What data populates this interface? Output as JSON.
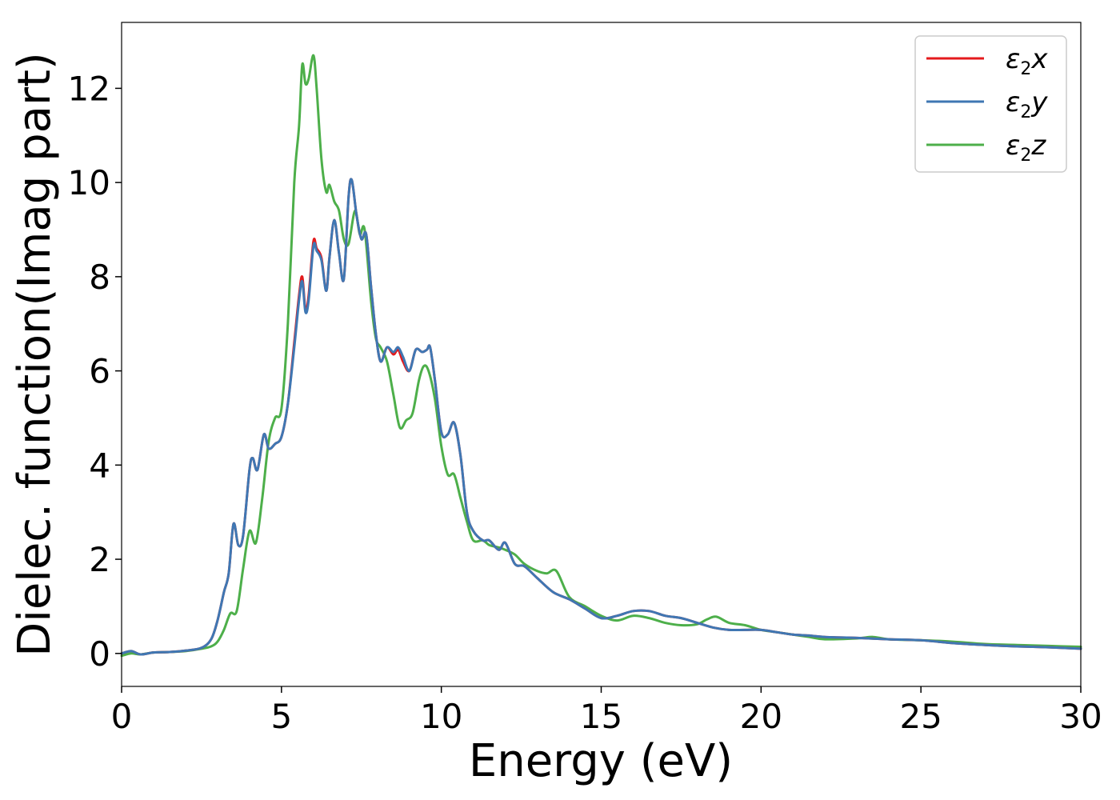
{
  "chart_data": {
    "type": "line",
    "xlabel": "Energy (eV)",
    "ylabel": "Dielec. function(Imag part)",
    "xlim": [
      0,
      30
    ],
    "ylim": [
      -0.7,
      13.4
    ],
    "xticks": [
      0,
      5,
      10,
      15,
      20,
      25,
      30
    ],
    "yticks": [
      0,
      2,
      4,
      6,
      8,
      10,
      12
    ],
    "grid": false,
    "legend_position": "top-right",
    "series": [
      {
        "name": "ε2x",
        "legend_base": "ε",
        "legend_sub": "2",
        "legend_suffix": "x",
        "color": "#e41a1c",
        "x": [
          0,
          0.3,
          0.6,
          1,
          1.5,
          2,
          2.5,
          2.8,
          3.0,
          3.2,
          3.35,
          3.5,
          3.65,
          3.8,
          4.0,
          4.1,
          4.25,
          4.45,
          4.6,
          4.8,
          5.0,
          5.2,
          5.4,
          5.55,
          5.65,
          5.75,
          5.85,
          6.0,
          6.1,
          6.25,
          6.4,
          6.5,
          6.65,
          6.8,
          6.95,
          7.1,
          7.2,
          7.35,
          7.5,
          7.65,
          7.8,
          7.95,
          8.1,
          8.3,
          8.5,
          8.65,
          8.8,
          9.0,
          9.2,
          9.4,
          9.55,
          9.65,
          9.8,
          10.0,
          10.2,
          10.4,
          10.6,
          10.8,
          11.0,
          11.3,
          11.5,
          11.8,
          12.0,
          12.3,
          12.6,
          13.0,
          13.5,
          14.0,
          14.5,
          15.0,
          15.5,
          16.0,
          16.5,
          17.0,
          17.5,
          18.0,
          18.5,
          19.0,
          19.5,
          20.0,
          20.5,
          21.0,
          21.5,
          22.0,
          23.0,
          24.0,
          25.0,
          26.0,
          27.0,
          28.0,
          29.0,
          30.0
        ],
        "y": [
          0.0,
          0.05,
          -0.02,
          0.02,
          0.03,
          0.06,
          0.12,
          0.3,
          0.7,
          1.3,
          1.7,
          2.75,
          2.3,
          2.5,
          3.9,
          4.15,
          3.9,
          4.65,
          4.35,
          4.45,
          4.6,
          5.3,
          6.6,
          7.6,
          8.0,
          7.3,
          7.6,
          8.75,
          8.6,
          8.4,
          7.7,
          8.4,
          9.2,
          8.5,
          7.95,
          9.7,
          10.05,
          9.3,
          8.8,
          8.9,
          7.8,
          6.8,
          6.2,
          6.5,
          6.35,
          6.45,
          6.2,
          6.0,
          6.45,
          6.4,
          6.45,
          6.5,
          5.8,
          4.7,
          4.65,
          4.9,
          4.2,
          3.0,
          2.6,
          2.4,
          2.4,
          2.2,
          2.35,
          1.9,
          1.85,
          1.6,
          1.3,
          1.15,
          0.95,
          0.75,
          0.8,
          0.9,
          0.9,
          0.8,
          0.75,
          0.65,
          0.55,
          0.5,
          0.5,
          0.5,
          0.45,
          0.4,
          0.38,
          0.35,
          0.33,
          0.3,
          0.28,
          0.22,
          0.18,
          0.15,
          0.13,
          0.1
        ]
      },
      {
        "name": "ε2y",
        "legend_base": "ε",
        "legend_sub": "2",
        "legend_suffix": "y",
        "color": "#3f77b3",
        "x": [
          0,
          0.3,
          0.6,
          1,
          1.5,
          2,
          2.5,
          2.8,
          3.0,
          3.2,
          3.35,
          3.5,
          3.65,
          3.8,
          4.0,
          4.1,
          4.25,
          4.45,
          4.6,
          4.8,
          5.0,
          5.2,
          5.4,
          5.55,
          5.65,
          5.75,
          5.85,
          6.0,
          6.1,
          6.25,
          6.4,
          6.5,
          6.65,
          6.8,
          6.95,
          7.1,
          7.2,
          7.35,
          7.5,
          7.65,
          7.8,
          7.95,
          8.1,
          8.3,
          8.5,
          8.65,
          8.8,
          9.0,
          9.2,
          9.4,
          9.55,
          9.65,
          9.8,
          10.0,
          10.2,
          10.4,
          10.6,
          10.8,
          11.0,
          11.3,
          11.5,
          11.8,
          12.0,
          12.3,
          12.6,
          13.0,
          13.5,
          14.0,
          14.5,
          15.0,
          15.5,
          16.0,
          16.5,
          17.0,
          17.5,
          18.0,
          18.5,
          19.0,
          19.5,
          20.0,
          20.5,
          21.0,
          21.5,
          22.0,
          23.0,
          24.0,
          25.0,
          26.0,
          27.0,
          28.0,
          29.0,
          30.0
        ],
        "y": [
          0.0,
          0.05,
          -0.02,
          0.02,
          0.03,
          0.06,
          0.12,
          0.3,
          0.7,
          1.3,
          1.7,
          2.75,
          2.3,
          2.5,
          3.9,
          4.15,
          3.9,
          4.65,
          4.35,
          4.45,
          4.6,
          5.3,
          6.5,
          7.5,
          7.9,
          7.25,
          7.5,
          8.65,
          8.55,
          8.35,
          7.7,
          8.4,
          9.2,
          8.5,
          7.95,
          9.7,
          10.05,
          9.3,
          8.8,
          8.9,
          7.8,
          6.8,
          6.2,
          6.5,
          6.4,
          6.5,
          6.3,
          6.0,
          6.45,
          6.4,
          6.45,
          6.5,
          5.8,
          4.7,
          4.65,
          4.9,
          4.2,
          3.0,
          2.6,
          2.4,
          2.4,
          2.2,
          2.35,
          1.9,
          1.85,
          1.6,
          1.3,
          1.15,
          0.95,
          0.75,
          0.8,
          0.9,
          0.9,
          0.8,
          0.75,
          0.65,
          0.55,
          0.5,
          0.5,
          0.5,
          0.45,
          0.4,
          0.38,
          0.35,
          0.33,
          0.3,
          0.28,
          0.22,
          0.18,
          0.15,
          0.13,
          0.1
        ]
      },
      {
        "name": "ε2z",
        "legend_base": "ε",
        "legend_sub": "2",
        "legend_suffix": "z",
        "color": "#4daf4a",
        "x": [
          0,
          0.3,
          0.6,
          1,
          1.5,
          2,
          2.5,
          2.8,
          3.0,
          3.2,
          3.4,
          3.6,
          3.8,
          4.0,
          4.2,
          4.4,
          4.6,
          4.8,
          5.0,
          5.2,
          5.4,
          5.55,
          5.65,
          5.75,
          5.85,
          6.0,
          6.1,
          6.25,
          6.4,
          6.5,
          6.65,
          6.8,
          6.95,
          7.1,
          7.3,
          7.45,
          7.6,
          7.8,
          7.95,
          8.1,
          8.3,
          8.5,
          8.7,
          8.9,
          9.1,
          9.3,
          9.45,
          9.6,
          9.8,
          10.0,
          10.2,
          10.4,
          10.6,
          10.8,
          11.0,
          11.3,
          11.5,
          11.8,
          12.0,
          12.3,
          12.6,
          13.0,
          13.3,
          13.6,
          14.0,
          14.5,
          15.0,
          15.5,
          16.0,
          16.5,
          17.0,
          17.5,
          18.0,
          18.3,
          18.6,
          19.0,
          19.5,
          20.0,
          20.5,
          21.0,
          21.5,
          22.0,
          23.0,
          23.5,
          24.0,
          25.0,
          26.0,
          27.0,
          28.0,
          29.0,
          30.0
        ],
        "y": [
          -0.05,
          0.0,
          -0.02,
          0.02,
          0.03,
          0.05,
          0.1,
          0.15,
          0.25,
          0.5,
          0.85,
          0.9,
          1.8,
          2.6,
          2.35,
          3.3,
          4.5,
          5.0,
          5.2,
          7.0,
          10.0,
          11.2,
          12.5,
          12.1,
          12.2,
          12.7,
          12.0,
          10.5,
          9.8,
          9.95,
          9.6,
          9.4,
          8.8,
          8.7,
          9.4,
          8.9,
          9.0,
          7.5,
          6.7,
          6.5,
          6.2,
          5.5,
          4.8,
          4.95,
          5.1,
          5.8,
          6.1,
          6.0,
          5.4,
          4.4,
          3.8,
          3.8,
          3.3,
          2.8,
          2.4,
          2.4,
          2.3,
          2.25,
          2.2,
          2.1,
          1.9,
          1.75,
          1.7,
          1.75,
          1.2,
          1.0,
          0.8,
          0.7,
          0.8,
          0.75,
          0.65,
          0.6,
          0.62,
          0.72,
          0.78,
          0.65,
          0.6,
          0.5,
          0.45,
          0.4,
          0.35,
          0.3,
          0.32,
          0.35,
          0.3,
          0.28,
          0.25,
          0.2,
          0.18,
          0.16,
          0.14
        ]
      }
    ]
  }
}
